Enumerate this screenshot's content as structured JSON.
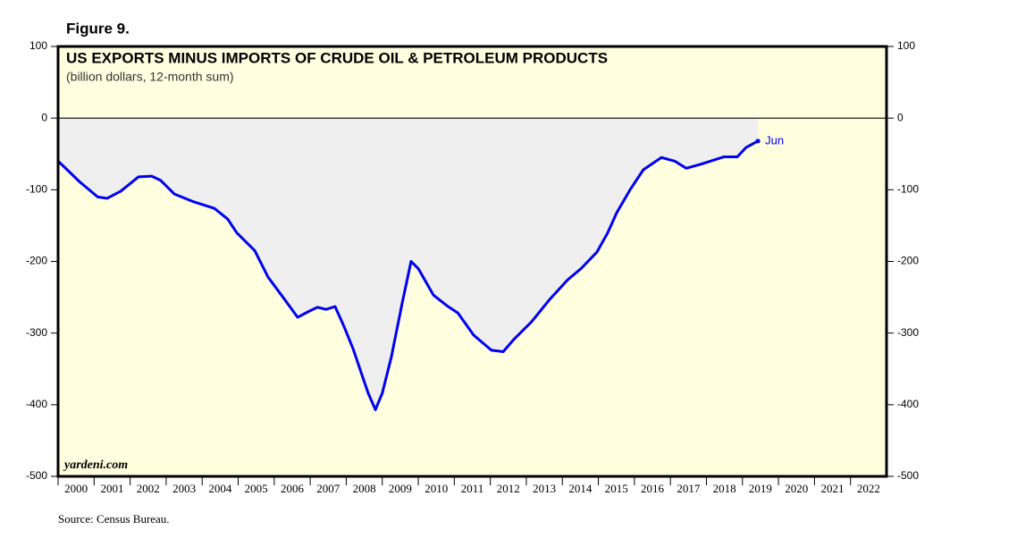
{
  "chart_data": {
    "type": "line",
    "figure_label": "Figure 9.",
    "title": "US EXPORTS MINUS IMPORTS OF CRUDE OIL & PETROLEUM PRODUCTS",
    "subtitle": "(billion dollars, 12-month sum)",
    "watermark": "yardeni.com",
    "source": "Source: Census Bureau.",
    "annotation": "Jun",
    "background": "#ffffe0",
    "fill_color": "#efefef",
    "xlim": [
      2000,
      2023
    ],
    "xticks": [
      2000,
      2001,
      2002,
      2003,
      2004,
      2005,
      2006,
      2007,
      2008,
      2009,
      2010,
      2011,
      2012,
      2013,
      2014,
      2015,
      2016,
      2017,
      2018,
      2019,
      2020,
      2021,
      2022
    ],
    "ylim": [
      -500,
      100
    ],
    "yticks": [
      -500,
      -400,
      -300,
      -200,
      -100,
      0,
      100
    ],
    "y2lim": [
      -500,
      100
    ],
    "y2ticks": [
      -500,
      -400,
      -300,
      -200,
      -100,
      0,
      100
    ],
    "series": [
      {
        "color": "#0000ee",
        "x": [
          2000.0,
          2000.25,
          2000.6,
          2001.1,
          2001.36,
          2001.74,
          2002.23,
          2002.6,
          2002.85,
          2003.23,
          2003.72,
          2004.34,
          2004.71,
          2004.96,
          2005.46,
          2005.83,
          2006.2,
          2006.65,
          2006.95,
          2007.2,
          2007.44,
          2007.69,
          2007.94,
          2008.19,
          2008.44,
          2008.61,
          2008.81,
          2009.0,
          2009.25,
          2009.55,
          2009.8,
          2010.0,
          2010.42,
          2010.8,
          2011.1,
          2011.54,
          2012.03,
          2012.36,
          2012.65,
          2013.15,
          2013.65,
          2014.14,
          2014.52,
          2014.96,
          2015.26,
          2015.51,
          2015.88,
          2016.25,
          2016.75,
          2017.12,
          2017.44,
          2017.87,
          2018.49,
          2018.86,
          2019.1,
          2019.43
        ],
        "values": [
          -60,
          -72,
          -89,
          -110,
          -112,
          -102,
          -82,
          -81,
          -87,
          -106,
          -116,
          -126,
          -141,
          -160,
          -185,
          -222,
          -247,
          -278,
          -270,
          -264,
          -267,
          -263,
          -291,
          -322,
          -359,
          -384,
          -407,
          -384,
          -334,
          -259,
          -200,
          -210,
          -247,
          -262,
          -272,
          -303,
          -324,
          -326,
          -309,
          -284,
          -253,
          -226,
          -210,
          -187,
          -160,
          -132,
          -100,
          -72,
          -55,
          -60,
          -70,
          -64,
          -54,
          -54,
          -41,
          -32
        ]
      }
    ]
  }
}
